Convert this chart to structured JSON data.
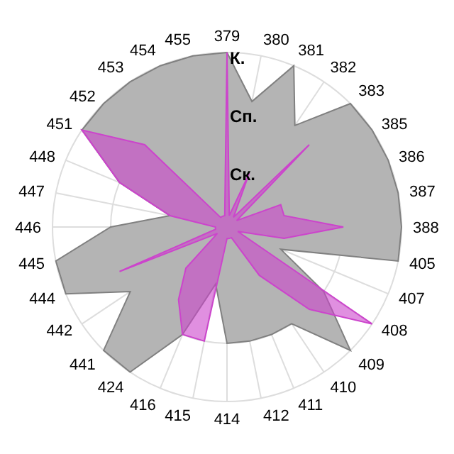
{
  "chart_data": {
    "type": "radar",
    "categories": [
      "379",
      "380",
      "381",
      "382",
      "383",
      "385",
      "386",
      "387",
      "388",
      "405",
      "407",
      "408",
      "409",
      "410",
      "411",
      "412",
      "414",
      "415",
      "416",
      "424",
      "441",
      "442",
      "444",
      "445",
      "446",
      "447",
      "448",
      "451",
      "452",
      "453",
      "454",
      "455"
    ],
    "series": [
      {
        "color": "#b4b4b4",
        "values": [
          3,
          2.2,
          3,
          2.1,
          3,
          3,
          3,
          3,
          3,
          3,
          1,
          2,
          3,
          2,
          2,
          2,
          2,
          1,
          2,
          3,
          3,
          2,
          3,
          3,
          2,
          1,
          2,
          3,
          3,
          3,
          3,
          3
        ]
      },
      {
        "color": "#cc44cc",
        "values": [
          3,
          0.2,
          1,
          0.2,
          2,
          0.2,
          1,
          1,
          2,
          1,
          0.2,
          3,
          2,
          1,
          0.2,
          0.2,
          0.2,
          2,
          2,
          1.5,
          1,
          0.2,
          2,
          0.2,
          0.2,
          1,
          2,
          3,
          2,
          0.2,
          0.2,
          0.2
        ]
      }
    ],
    "ylim": [
      0,
      3
    ],
    "yticks": [
      {
        "value": 1,
        "label": "Ск."
      },
      {
        "value": 2,
        "label": "Сп."
      },
      {
        "value": 3,
        "label": "К."
      }
    ],
    "grid": true
  }
}
